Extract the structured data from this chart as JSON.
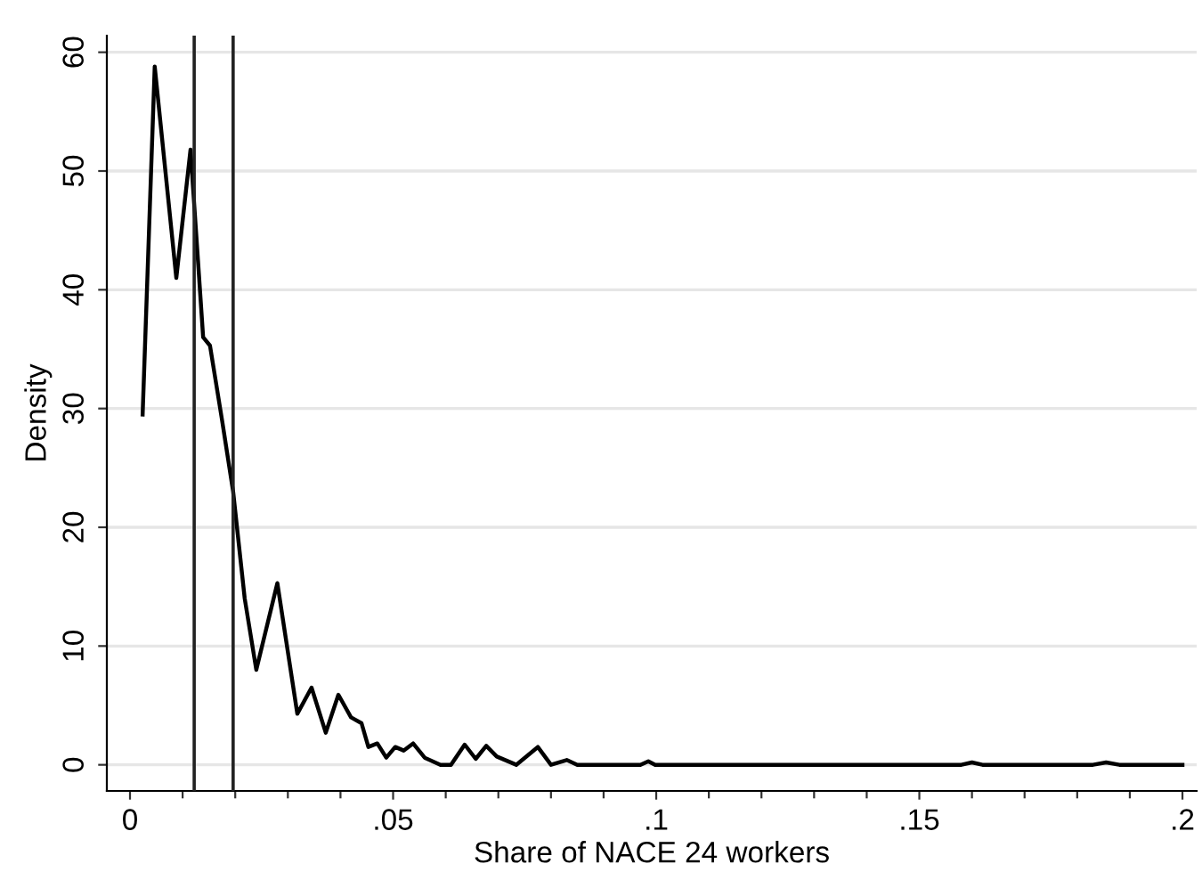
{
  "chart_data": {
    "type": "line",
    "xlabel": "Share of NACE 24 workers",
    "ylabel": "Density",
    "x": [
      0.0024,
      0.0047,
      0.0088,
      0.0115,
      0.0139,
      0.0152,
      0.0175,
      0.0196,
      0.0218,
      0.024,
      0.028,
      0.0318,
      0.0345,
      0.0372,
      0.0396,
      0.042,
      0.044,
      0.0453,
      0.047,
      0.0487,
      0.0504,
      0.052,
      0.0538,
      0.056,
      0.059,
      0.061,
      0.0636,
      0.0657,
      0.0677,
      0.0697,
      0.0734,
      0.0775,
      0.08,
      0.083,
      0.085,
      0.097,
      0.0985,
      0.0998,
      0.158,
      0.16,
      0.162,
      0.183,
      0.1855,
      0.188,
      0.2
    ],
    "series": [
      {
        "color": "#000000",
        "values": [
          29.5,
          58.8,
          41,
          51.8,
          36,
          35.3,
          29,
          23,
          14,
          8,
          15.3,
          4.3,
          6.5,
          2.7,
          5.9,
          4,
          3.5,
          1.5,
          1.8,
          0.6,
          1.5,
          1.2,
          1.8,
          0.6,
          0,
          0,
          1.7,
          0.5,
          1.6,
          0.7,
          0,
          1.5,
          0,
          0.4,
          0,
          0,
          0.3,
          0,
          0,
          0.2,
          0,
          0,
          0.2,
          0,
          0
        ]
      }
    ],
    "xlim": [
      -0.0044,
      0.2027
    ],
    "ylim": [
      -2.2,
      61.4
    ],
    "xticks": [
      {
        "value": 0,
        "label": "0"
      },
      {
        "value": 0.01,
        "label": null
      },
      {
        "value": 0.02,
        "label": null
      },
      {
        "value": 0.03,
        "label": null
      },
      {
        "value": 0.04,
        "label": null
      },
      {
        "value": 0.05,
        "label": ".05"
      },
      {
        "value": 0.06,
        "label": null
      },
      {
        "value": 0.07,
        "label": null
      },
      {
        "value": 0.08,
        "label": null
      },
      {
        "value": 0.09,
        "label": null
      },
      {
        "value": 0.1,
        "label": ".1"
      },
      {
        "value": 0.11,
        "label": null
      },
      {
        "value": 0.12,
        "label": null
      },
      {
        "value": 0.13,
        "label": null
      },
      {
        "value": 0.14,
        "label": null
      },
      {
        "value": 0.15,
        "label": ".15"
      },
      {
        "value": 0.16,
        "label": null
      },
      {
        "value": 0.17,
        "label": null
      },
      {
        "value": 0.18,
        "label": null
      },
      {
        "value": 0.19,
        "label": null
      },
      {
        "value": 0.2,
        "label": ".2"
      }
    ],
    "yticks": [
      0,
      10,
      20,
      30,
      40,
      50,
      60
    ],
    "grid": "y",
    "line_style": "solid",
    "ref_lines": [
      {
        "axis": "x",
        "value": 0.0122,
        "color": "#222222"
      },
      {
        "axis": "x",
        "value": 0.0196,
        "color": "#222222"
      }
    ]
  }
}
